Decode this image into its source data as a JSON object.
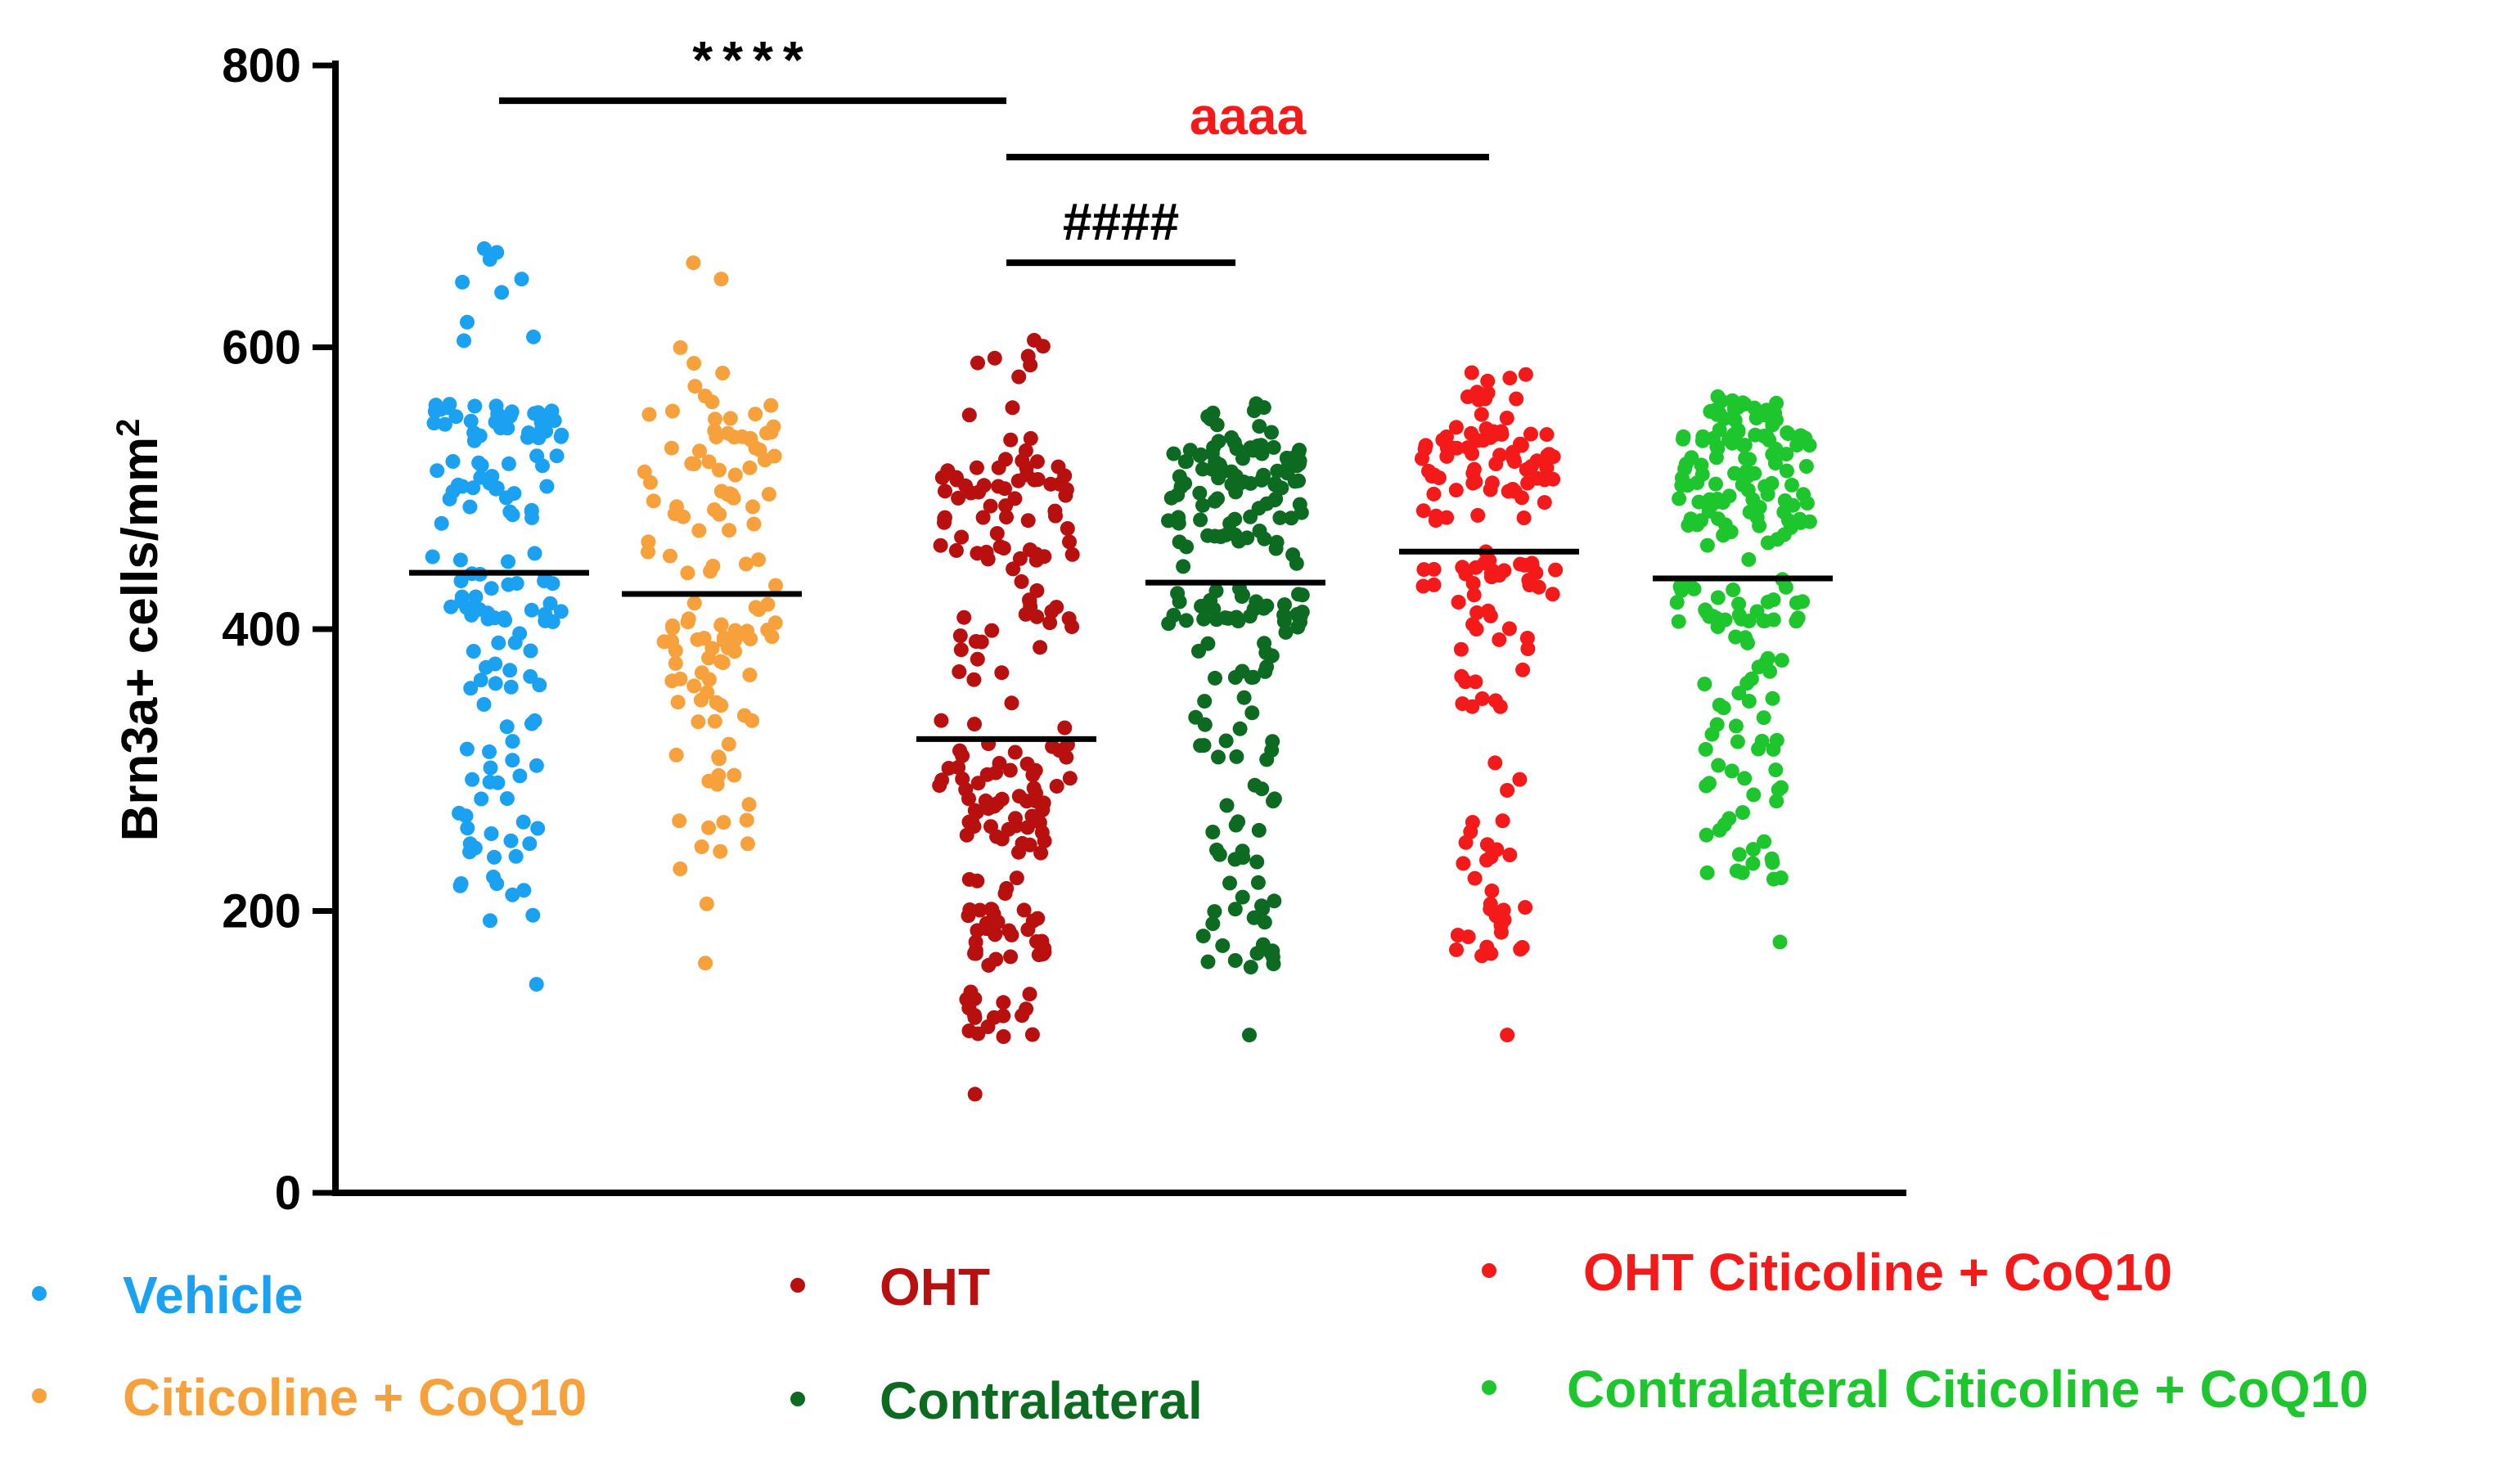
{
  "chart_data": {
    "type": "scatter",
    "subtype": "dot-plot-with-means",
    "title": "",
    "xlabel": "",
    "ylabel": "Brn3a+ cells/mm",
    "ylabel_superscript": "2",
    "ylim": [
      0,
      800
    ],
    "yticks": [
      0,
      200,
      400,
      600,
      800
    ],
    "ytick_labels": [
      "0",
      "200",
      "400",
      "600",
      "800"
    ],
    "grid": false,
    "legend_position": "bottom",
    "series": [
      {
        "name": "Vehicle",
        "color": "#1ba1f2",
        "mean": 440,
        "n": 160,
        "min": 148,
        "max": 670,
        "dense_high": 560
      },
      {
        "name": "Citicoline + CoQ10",
        "color": "#f7a13c",
        "mean": 425,
        "n": 130,
        "min": 163,
        "max": 660,
        "dense_high": 560
      },
      {
        "name": "OHT",
        "color": "#b80f0f",
        "mean": 322,
        "n": 210,
        "min": 70,
        "max": 605,
        "dense_high": 520
      },
      {
        "name": "Contralateral",
        "color": "#0c6b20",
        "mean": 433,
        "n": 200,
        "min": 112,
        "max": 560,
        "dense_high": 530
      },
      {
        "name": "OHT Citicoline + CoQ10",
        "color": "#f51a1a",
        "mean": 455,
        "n": 160,
        "min": 112,
        "max": 582,
        "dense_high": 540
      },
      {
        "name": "Contralateral Citicoline + CoQ10",
        "color": "#1dc62c",
        "mean": 436,
        "n": 200,
        "min": 178,
        "max": 565,
        "dense_high": 540
      }
    ],
    "significance": [
      {
        "label": "****",
        "from": 0,
        "to": 2,
        "bar_y": 775,
        "color": "#000000"
      },
      {
        "label": "aaaa",
        "from": 2,
        "to": 4,
        "bar_y": 735,
        "color": "#f51a1a"
      },
      {
        "label": "####",
        "from": 2,
        "to": 3,
        "bar_y": 660,
        "color": "#000000"
      }
    ]
  },
  "legend": {
    "items": [
      {
        "label": "Vehicle",
        "color": "#1ba1f2"
      },
      {
        "label": "Citicoline + CoQ10",
        "color": "#f7a13c"
      },
      {
        "label": "OHT",
        "color": "#b80f0f"
      },
      {
        "label": "Contralateral",
        "color": "#0c6b20"
      },
      {
        "label": "OHT Citicoline + CoQ10",
        "color": "#f51a1a"
      },
      {
        "label": "Contralateral Citicoline + CoQ10",
        "color": "#1dc62c"
      }
    ]
  }
}
